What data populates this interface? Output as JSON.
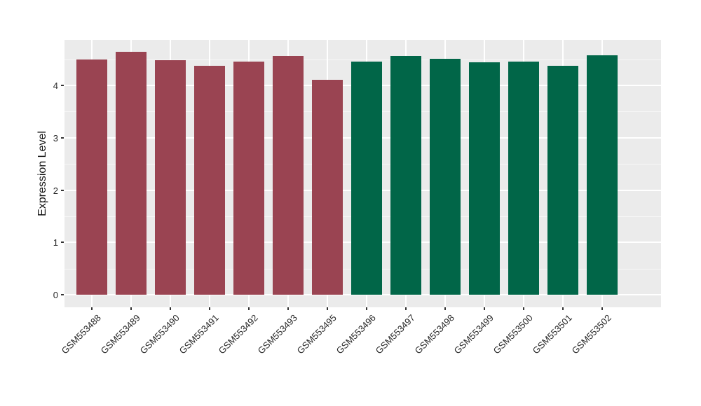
{
  "chart_data": {
    "type": "bar",
    "title": "",
    "xlabel": "",
    "ylabel": "Expression Level",
    "categories": [
      "GSM553488",
      "GSM553489",
      "GSM553490",
      "GSM553491",
      "GSM553492",
      "GSM553493",
      "GSM553495",
      "GSM553496",
      "GSM553497",
      "GSM553498",
      "GSM553499",
      "GSM553500",
      "GSM553501",
      "GSM553502"
    ],
    "values": [
      4.5,
      4.64,
      4.48,
      4.38,
      4.45,
      4.56,
      4.11,
      4.46,
      4.56,
      4.51,
      4.44,
      4.45,
      4.38,
      4.57
    ],
    "bar_colors": [
      "#9A4452",
      "#9A4452",
      "#9A4452",
      "#9A4452",
      "#9A4452",
      "#9A4452",
      "#9A4452",
      "#016648",
      "#016648",
      "#016648",
      "#016648",
      "#016648",
      "#016648",
      "#016648"
    ],
    "group_colors": {
      "left_group": "#9A4452",
      "right_group": "#016648"
    },
    "yticks": [
      "0",
      "1",
      "2",
      "3",
      "4"
    ],
    "ytick_values": [
      0,
      1,
      2,
      3,
      4
    ],
    "minor_ytick_values": [
      0.5,
      1.5,
      2.5,
      3.5,
      4.5
    ],
    "ylim": [
      0,
      4.87
    ],
    "grid": true,
    "legend_position": "none",
    "panel_bg": "#EBEBEB",
    "grid_major_color": "#FFFFFF",
    "grid_minor_color": "#F7F7F7",
    "axis_text_color": "#262626",
    "tick_color": "#333333"
  }
}
